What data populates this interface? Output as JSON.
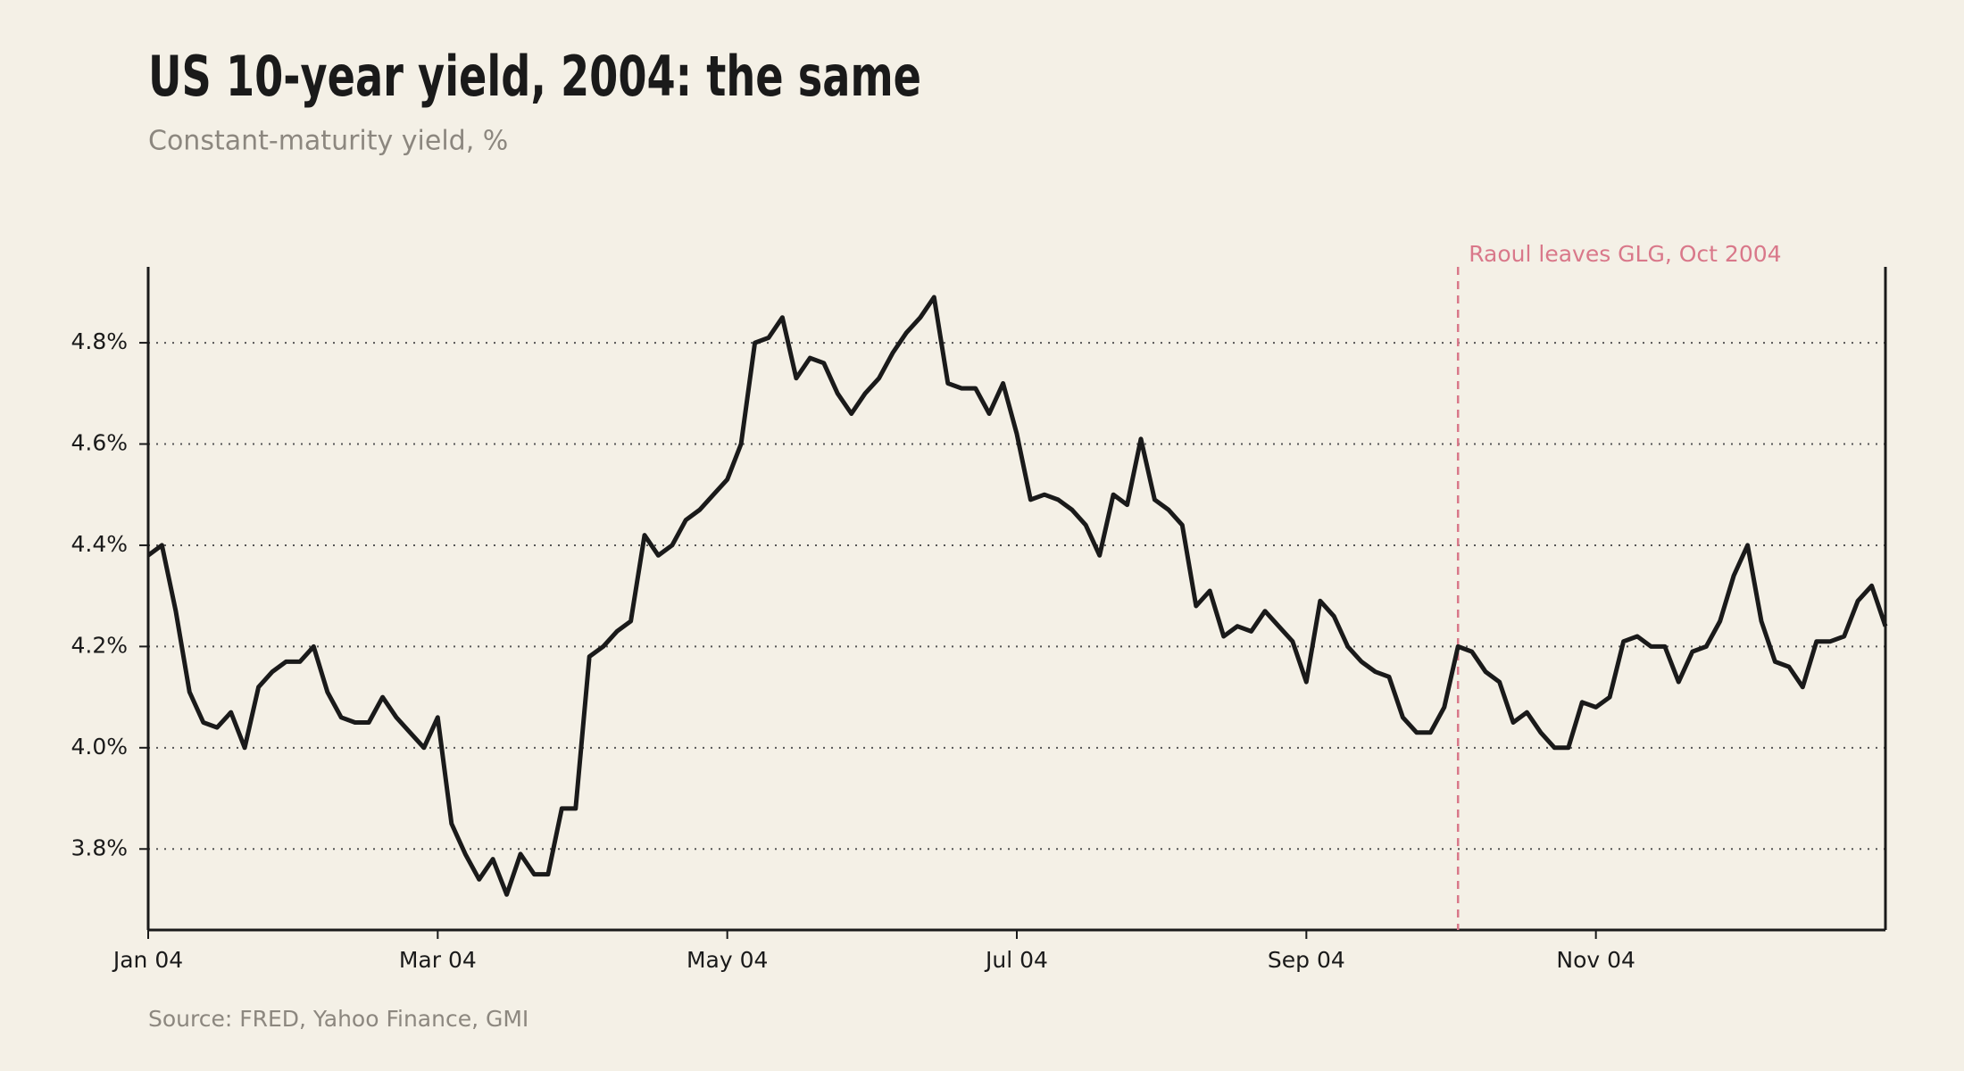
{
  "chart_data": {
    "type": "line",
    "title": "US 10-year yield, 2004: the same",
    "subtitle": "Constant-maturity yield, %",
    "source": "Source: FRED, Yahoo Finance, GMI",
    "color": "#1a1a1a",
    "grid": true,
    "categories": [
      "Jan 04",
      null,
      null,
      null,
      null,
      null,
      null,
      null,
      null,
      null,
      null,
      null,
      null,
      null,
      null,
      null,
      null,
      null,
      null,
      null,
      null,
      "Mar 04",
      null,
      null,
      null,
      null,
      null,
      null,
      null,
      null,
      null,
      null,
      null,
      null,
      null,
      null,
      null,
      null,
      null,
      null,
      null,
      null,
      "May 04",
      null,
      null,
      null,
      null,
      null,
      null,
      null,
      null,
      null,
      null,
      null,
      null,
      null,
      null,
      null,
      null,
      null,
      null,
      null,
      null,
      "Jul 04",
      null,
      null,
      null,
      null,
      null,
      null,
      null,
      null,
      null,
      null,
      null,
      null,
      null,
      null,
      null,
      null,
      null,
      null,
      null,
      null,
      "Sep 04",
      null,
      null,
      null,
      null,
      null,
      null,
      null,
      null,
      null,
      null,
      null,
      null,
      null,
      null,
      null,
      null,
      null,
      null,
      null,
      null,
      "Nov 04",
      null,
      null,
      null,
      null,
      null,
      null,
      null,
      null,
      null,
      null,
      null,
      null,
      null,
      null,
      null,
      null,
      null,
      null,
      null,
      null,
      null
    ],
    "values": [
      4.38,
      4.4,
      4.27,
      4.11,
      4.05,
      4.04,
      4.07,
      4.0,
      4.12,
      4.15,
      4.17,
      4.17,
      4.2,
      4.11,
      4.06,
      4.05,
      4.05,
      4.1,
      4.06,
      4.03,
      4.0,
      4.06,
      3.85,
      3.79,
      3.74,
      3.78,
      3.71,
      3.79,
      3.75,
      3.75,
      3.88,
      3.88,
      4.18,
      4.2,
      4.23,
      4.25,
      4.42,
      4.38,
      4.4,
      4.45,
      4.47,
      4.5,
      4.53,
      4.6,
      4.8,
      4.81,
      4.85,
      4.73,
      4.77,
      4.76,
      4.7,
      4.66,
      4.7,
      4.73,
      4.78,
      4.82,
      4.85,
      4.89,
      4.72,
      4.71,
      4.71,
      4.66,
      4.72,
      4.62,
      4.49,
      4.5,
      4.49,
      4.47,
      4.44,
      4.38,
      4.5,
      4.48,
      4.61,
      4.49,
      4.47,
      4.44,
      4.28,
      4.31,
      4.22,
      4.24,
      4.23,
      4.27,
      4.24,
      4.21,
      4.13,
      4.29,
      4.26,
      4.2,
      4.17,
      4.15,
      4.14,
      4.06,
      4.03,
      4.03,
      4.08,
      4.2,
      4.19,
      4.15,
      4.13,
      4.05,
      4.07,
      4.03,
      4.0,
      4.0,
      4.09,
      4.08,
      4.1,
      4.21,
      4.22,
      4.2,
      4.2,
      4.13,
      4.19,
      4.2,
      4.25,
      4.34,
      4.4,
      4.25,
      4.17,
      4.16,
      4.12,
      4.21,
      4.21,
      4.22,
      4.29,
      4.32,
      4.24
    ],
    "ylim": [
      3.64,
      4.95
    ],
    "yticks": [
      {
        "value": 3.8,
        "label": "3.8%"
      },
      {
        "value": 4.0,
        "label": "4.0%"
      },
      {
        "value": 4.2,
        "label": "4.2%"
      },
      {
        "value": 4.4,
        "label": "4.4%"
      },
      {
        "value": 4.6,
        "label": "4.6%"
      },
      {
        "value": 4.8,
        "label": "4.8%"
      }
    ],
    "annotation": {
      "label": "Raoul leaves GLG, Oct 2004",
      "at": 95,
      "color": "#d9788a"
    }
  }
}
